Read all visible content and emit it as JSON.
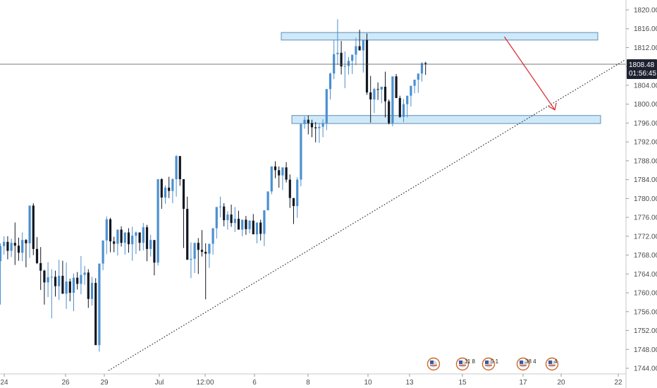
{
  "chart_data": {
    "type": "candlestick",
    "y_axis": {
      "ticks": [
        1744.0,
        1748.0,
        1752.0,
        1756.0,
        1760.0,
        1764.0,
        1768.0,
        1772.0,
        1776.0,
        1780.0,
        1784.0,
        1788.0,
        1792.0,
        1796.0,
        1800.0,
        1804.0,
        1808.0,
        1812.0,
        1816.0,
        1820.0
      ],
      "tick_labels": [
        "1744.00",
        "1748.00",
        "1752.00",
        "1756.00",
        "1760.00",
        "1764.00",
        "1768.00",
        "1772.00",
        "1776.00",
        "1780.00",
        "1784.00",
        "1788.00",
        "1792.00",
        "1796.00",
        "1800.00",
        "1804.00",
        "1808.00",
        "1812.00",
        "1816.00",
        "1820.00"
      ],
      "range": [
        1742.8,
        1821.6
      ],
      "position": "right"
    },
    "x_axis": {
      "tick_labels": [
        "24",
        "26",
        "29",
        "Jul",
        "12:00",
        "6",
        "8",
        "10",
        "13",
        "15",
        "17",
        "20",
        "22"
      ]
    },
    "current_price": {
      "value": 1808.48,
      "label": "1808.48",
      "countdown": "01:56:45"
    },
    "zones": [
      {
        "name": "resistance",
        "low": 1813.6,
        "high": 1815.2
      },
      {
        "name": "support",
        "low": 1795.9,
        "high": 1797.6
      }
    ],
    "trendline": {
      "style": "dotted",
      "from": {
        "x": 29.5,
        "price": 1743.5
      },
      "to": {
        "x": 176,
        "price": 1812.0
      }
    },
    "arrow": {
      "from": {
        "x": 145,
        "price": 1814.3
      },
      "to": {
        "x": 153,
        "price": 1798.8
      }
    },
    "event_badges": [
      {
        "x": 145,
        "label": ""
      },
      {
        "x": 153,
        "label": "11 8"
      },
      {
        "x": 161,
        "label": "5 1"
      },
      {
        "x": 174,
        "label": "38 4"
      },
      {
        "x": 183,
        "label": "4"
      }
    ],
    "bars": [
      [
        1766.7,
        1770.5,
        1757.5,
        1769.9
      ],
      [
        1769.9,
        1772.0,
        1768.1,
        1770.8
      ],
      [
        1770.8,
        1772.0,
        1767.1,
        1768.9
      ],
      [
        1768.9,
        1771.5,
        1767.6,
        1770.6
      ],
      [
        1770.6,
        1774.9,
        1765.9,
        1770.0
      ],
      [
        1770.0,
        1771.7,
        1766.8,
        1768.5
      ],
      [
        1768.5,
        1772.8,
        1766.7,
        1771.2
      ],
      [
        1771.2,
        1771.4,
        1765.4,
        1770.5
      ],
      [
        1770.5,
        1776.5,
        1767.4,
        1778.5
      ],
      [
        1778.5,
        1779.0,
        1768.0,
        1769.3
      ],
      [
        1769.3,
        1771.8,
        1766.1,
        1766.3
      ],
      [
        1766.3,
        1769.7,
        1760.6,
        1764.7
      ],
      [
        1764.7,
        1764.9,
        1757.5,
        1762.2
      ],
      [
        1762.2,
        1766.5,
        1759.1,
        1763.3
      ],
      [
        1763.3,
        1765.0,
        1754.6,
        1763.4
      ],
      [
        1763.4,
        1764.7,
        1759.2,
        1761.4
      ],
      [
        1761.4,
        1767.0,
        1758.5,
        1763.6
      ],
      [
        1763.6,
        1766.8,
        1759.8,
        1759.8
      ],
      [
        1759.8,
        1766.4,
        1756.6,
        1762.4
      ],
      [
        1762.4,
        1763.0,
        1758.2,
        1760.0
      ],
      [
        1760.0,
        1764.1,
        1756.1,
        1763.2
      ],
      [
        1763.2,
        1764.4,
        1760.7,
        1761.9
      ],
      [
        1761.9,
        1767.8,
        1759.7,
        1763.8
      ],
      [
        1763.8,
        1765.7,
        1761.7,
        1764.3
      ],
      [
        1764.3,
        1765.0,
        1756.8,
        1758.7
      ],
      [
        1758.7,
        1763.4,
        1757.3,
        1762.1
      ],
      [
        1762.1,
        1763.1,
        1750.2,
        1748.9
      ],
      [
        1748.9,
        1761.0,
        1747.5,
        1766.2
      ],
      [
        1766.2,
        1770.7,
        1764.8,
        1771.1
      ],
      [
        1771.1,
        1776.2,
        1768.2,
        1775.6
      ],
      [
        1775.6,
        1775.9,
        1768.6,
        1770.9
      ],
      [
        1770.9,
        1771.9,
        1768.6,
        1770.4
      ],
      [
        1770.4,
        1771.6,
        1767.9,
        1773.4
      ],
      [
        1773.4,
        1774.1,
        1769.8,
        1770.6
      ],
      [
        1770.6,
        1772.4,
        1768.1,
        1772.8
      ],
      [
        1772.8,
        1773.7,
        1768.5,
        1770.3
      ],
      [
        1770.3,
        1774.0,
        1766.8,
        1772.1
      ],
      [
        1772.1,
        1773.0,
        1768.2,
        1772.8
      ],
      [
        1772.8,
        1772.1,
        1768.9,
        1770.6
      ],
      [
        1770.6,
        1774.8,
        1769.0,
        1773.9
      ],
      [
        1773.9,
        1774.4,
        1766.7,
        1769.3
      ],
      [
        1769.3,
        1772.3,
        1767.7,
        1771.2
      ],
      [
        1771.2,
        1771.1,
        1763.7,
        1766.4
      ],
      [
        1766.4,
        1782.8,
        1765.8,
        1784.1
      ],
      [
        1784.1,
        1784.3,
        1777.8,
        1780.2
      ],
      [
        1780.2,
        1782.8,
        1778.9,
        1782.3
      ],
      [
        1782.3,
        1784.6,
        1780.1,
        1781.6
      ],
      [
        1781.6,
        1784.3,
        1779.0,
        1784.1
      ],
      [
        1784.1,
        1789.2,
        1780.4,
        1789.0
      ],
      [
        1789.0,
        1789.0,
        1782.7,
        1784.1
      ],
      [
        1784.1,
        1783.5,
        1769.5,
        1777.8
      ],
      [
        1777.8,
        1780.4,
        1769.0,
        1767.0
      ],
      [
        1767.0,
        1770.7,
        1763.1,
        1767.2
      ],
      [
        1767.2,
        1767.6,
        1764.2,
        1770.6
      ],
      [
        1770.6,
        1771.6,
        1764.0,
        1769.1
      ],
      [
        1769.1,
        1773.3,
        1767.7,
        1768.7
      ],
      [
        1768.7,
        1770.5,
        1758.6,
        1768.3
      ],
      [
        1768.3,
        1770.0,
        1765.3,
        1770.4
      ],
      [
        1770.4,
        1772.4,
        1768.1,
        1773.7
      ],
      [
        1773.7,
        1775.8,
        1771.5,
        1778.2
      ],
      [
        1778.2,
        1780.4,
        1776.0,
        1778.3
      ],
      [
        1778.3,
        1779.0,
        1774.1,
        1775.4
      ],
      [
        1775.4,
        1777.3,
        1773.4,
        1776.6
      ],
      [
        1776.6,
        1778.7,
        1774.0,
        1774.8
      ],
      [
        1774.8,
        1778.2,
        1772.9,
        1775.7
      ],
      [
        1775.7,
        1777.4,
        1773.9,
        1773.4
      ],
      [
        1773.4,
        1775.1,
        1772.0,
        1775.5
      ],
      [
        1775.5,
        1776.3,
        1772.3,
        1773.5
      ],
      [
        1773.5,
        1775.4,
        1772.6,
        1775.3
      ],
      [
        1775.3,
        1776.7,
        1773.0,
        1772.4
      ],
      [
        1772.4,
        1773.9,
        1770.5,
        1774.9
      ],
      [
        1774.9,
        1775.5,
        1771.1,
        1772.5
      ],
      [
        1772.5,
        1772.8,
        1769.9,
        1777.5
      ],
      [
        1777.5,
        1781.3,
        1777.5,
        1781.5
      ],
      [
        1781.5,
        1786.3,
        1780.9,
        1786.8
      ],
      [
        1786.8,
        1787.9,
        1784.3,
        1786.0
      ],
      [
        1786.0,
        1786.8,
        1782.3,
        1784.9
      ],
      [
        1784.9,
        1786.2,
        1781.8,
        1786.6
      ],
      [
        1786.6,
        1787.7,
        1783.4,
        1784.0
      ],
      [
        1784.0,
        1785.1,
        1778.0,
        1780.1
      ],
      [
        1780.1,
        1779.6,
        1774.6,
        1778.4
      ],
      [
        1778.4,
        1784.5,
        1775.9,
        1784.0
      ],
      [
        1784.0,
        1789.1,
        1782.6,
        1795.8
      ],
      [
        1795.8,
        1797.4,
        1794.8,
        1796.7
      ],
      [
        1796.7,
        1797.6,
        1793.6,
        1796.0
      ],
      [
        1796.0,
        1796.7,
        1793.0,
        1795.1
      ],
      [
        1795.1,
        1796.2,
        1791.9,
        1794.9
      ],
      [
        1794.9,
        1795.9,
        1791.8,
        1795.2
      ],
      [
        1795.2,
        1796.8,
        1793.0,
        1796.0
      ],
      [
        1796.0,
        1800.2,
        1794.5,
        1803.2
      ],
      [
        1803.2,
        1806.7,
        1801.0,
        1806.5
      ],
      [
        1806.5,
        1813.7,
        1805.3,
        1810.6
      ],
      [
        1810.6,
        1818.0,
        1808.3,
        1810.9
      ],
      [
        1810.9,
        1813.4,
        1806.3,
        1808.0
      ],
      [
        1808.0,
        1811.2,
        1803.4,
        1808.1
      ],
      [
        1808.1,
        1810.0,
        1806.3,
        1809.2
      ],
      [
        1809.2,
        1810.4,
        1806.4,
        1810.5
      ],
      [
        1810.5,
        1814.1,
        1808.3,
        1812.3
      ],
      [
        1812.3,
        1815.8,
        1811.5,
        1811.4
      ],
      [
        1811.4,
        1812.7,
        1806.7,
        1813.6
      ],
      [
        1813.6,
        1815.0,
        1802.0,
        1802.5
      ],
      [
        1802.5,
        1806.0,
        1796.1,
        1801.0
      ],
      [
        1801.0,
        1803.5,
        1798.1,
        1803.2
      ],
      [
        1803.2,
        1804.6,
        1800.9,
        1803.1
      ],
      [
        1803.1,
        1803.6,
        1800.2,
        1803.7
      ],
      [
        1803.7,
        1806.9,
        1797.2,
        1800.6
      ],
      [
        1800.6,
        1801.0,
        1795.7,
        1796.0
      ],
      [
        1796.0,
        1797.2,
        1795.3,
        1805.9
      ],
      [
        1805.9,
        1806.4,
        1802.8,
        1801.3
      ],
      [
        1801.3,
        1801.8,
        1797.1,
        1797.3
      ],
      [
        1797.3,
        1801.1,
        1796.2,
        1800.0
      ],
      [
        1800.0,
        1801.1,
        1797.2,
        1801.8
      ],
      [
        1801.8,
        1802.7,
        1799.5,
        1803.9
      ],
      [
        1803.9,
        1804.9,
        1802.3,
        1805.2
      ],
      [
        1805.2,
        1806.2,
        1802.4,
        1806.5
      ],
      [
        1806.5,
        1808.9,
        1804.8,
        1808.7
      ],
      [
        1808.7,
        1809.0,
        1806.2,
        1808.5
      ]
    ]
  }
}
